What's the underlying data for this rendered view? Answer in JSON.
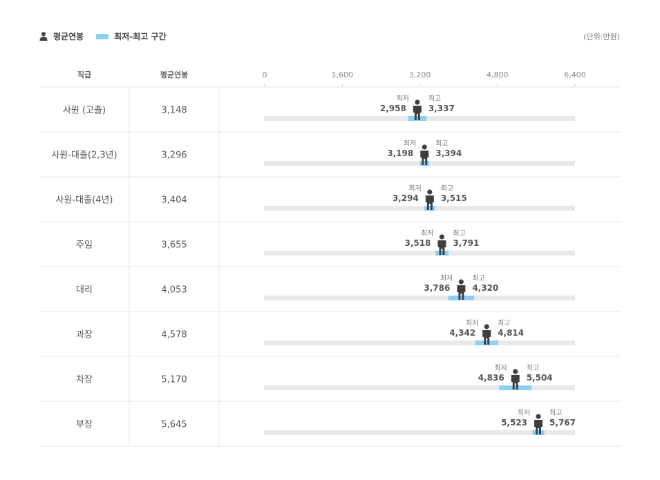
{
  "legend": {
    "avg_label": "평균연봉",
    "range_label": "최저-최고 구간"
  },
  "unit": "(단위:만원)",
  "colors": {
    "range": "#8ecff7",
    "track": "#e9e9e9",
    "person": "#3f3f3f",
    "grid": "#e6e6e6"
  },
  "chart_data": {
    "type": "table",
    "columns": [
      "직급",
      "평균연봉"
    ],
    "axis_ticks": [
      "0",
      "1,600",
      "3,200",
      "4,800",
      "6,400"
    ],
    "xlim": [
      0,
      6400
    ],
    "min_caption": "최저",
    "max_caption": "최고",
    "rows": [
      {
        "grade": "사원 (고졸)",
        "avg": 3148,
        "avg_label": "3,148",
        "min": 2958,
        "min_label": "2,958",
        "max": 3337,
        "max_label": "3,337"
      },
      {
        "grade": "사원-대졸(2,3년)",
        "avg": 3296,
        "avg_label": "3,296",
        "min": 3198,
        "min_label": "3,198",
        "max": 3394,
        "max_label": "3,394"
      },
      {
        "grade": "사원-대졸(4년)",
        "avg": 3404,
        "avg_label": "3,404",
        "min": 3294,
        "min_label": "3,294",
        "max": 3515,
        "max_label": "3,515"
      },
      {
        "grade": "주임",
        "avg": 3655,
        "avg_label": "3,655",
        "min": 3518,
        "min_label": "3,518",
        "max": 3791,
        "max_label": "3,791"
      },
      {
        "grade": "대리",
        "avg": 4053,
        "avg_label": "4,053",
        "min": 3786,
        "min_label": "3,786",
        "max": 4320,
        "max_label": "4,320"
      },
      {
        "grade": "과장",
        "avg": 4578,
        "avg_label": "4,578",
        "min": 4342,
        "min_label": "4,342",
        "max": 4814,
        "max_label": "4,814"
      },
      {
        "grade": "차장",
        "avg": 5170,
        "avg_label": "5,170",
        "min": 4836,
        "min_label": "4,836",
        "max": 5504,
        "max_label": "5,504"
      },
      {
        "grade": "부장",
        "avg": 5645,
        "avg_label": "5,645",
        "min": 5523,
        "min_label": "5,523",
        "max": 5767,
        "max_label": "5,767"
      }
    ]
  }
}
